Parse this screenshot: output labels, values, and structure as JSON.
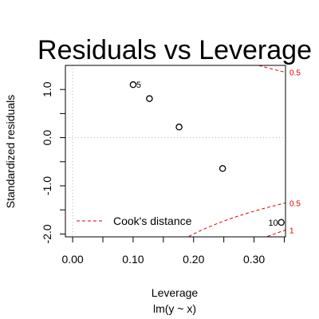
{
  "chart_data": {
    "type": "scatter",
    "title": "Residuals vs Leverage",
    "xlabel": "Leverage",
    "subtitle": "lm(y ~ x)",
    "ylabel": "Standardized residuals",
    "xlim": [
      -0.012,
      0.352
    ],
    "ylim": [
      -2.06,
      1.5
    ],
    "x_ticks": [
      0.0,
      0.05,
      0.1,
      0.15,
      0.2,
      0.25,
      0.3,
      0.35
    ],
    "x_tick_labels": [
      "0.00",
      "",
      "0.10",
      "",
      "0.20",
      "",
      "0.30",
      ""
    ],
    "y_ticks": [
      -2.0,
      -1.5,
      -1.0,
      -0.5,
      0.0,
      0.5,
      1.0
    ],
    "y_tick_labels": [
      "-2.0",
      "",
      "-1.0",
      "",
      "0.0",
      "",
      "1.0"
    ],
    "points": [
      {
        "x": 0.1,
        "y": 1.1,
        "label": "5"
      },
      {
        "x": 0.127,
        "y": 0.81,
        "label": ""
      },
      {
        "x": 0.176,
        "y": 0.22,
        "label": ""
      },
      {
        "x": 0.248,
        "y": -0.64,
        "label": ""
      },
      {
        "x": 0.345,
        "y": -1.76,
        "label": "10"
      }
    ],
    "cook_contours": [
      {
        "level": 0.5,
        "label": "0.5"
      },
      {
        "level": 1,
        "label": "1"
      }
    ],
    "legend": {
      "label": "Cook's distance",
      "position": "bottom-left"
    },
    "reference_lines": {
      "h": 0,
      "v": 0
    },
    "colors": {
      "points": "#000000",
      "cook": "#e00000",
      "reference": "#b0b0b0"
    }
  }
}
